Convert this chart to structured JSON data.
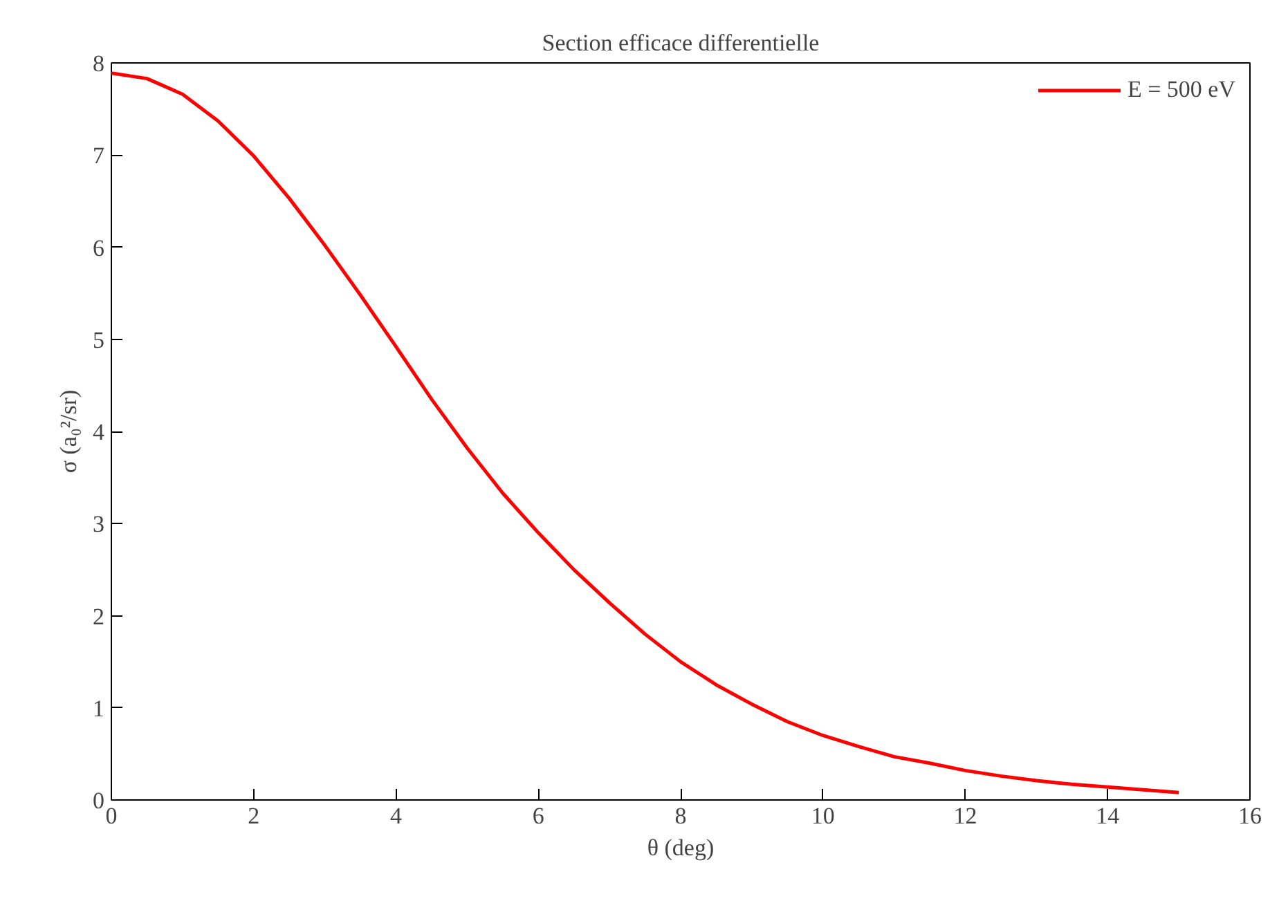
{
  "chart_data": {
    "type": "line",
    "title": "Section efficace differentielle",
    "xlabel": "θ (deg)",
    "ylabel": "σ (a₀²/sr)",
    "x": [
      0,
      0.5,
      1,
      1.5,
      2,
      2.5,
      3,
      3.5,
      4,
      4.5,
      5,
      5.5,
      6,
      6.5,
      7,
      7.5,
      8,
      8.5,
      9,
      9.5,
      10,
      10.5,
      11,
      11.5,
      12,
      12.5,
      13,
      13.5,
      14,
      14.5,
      15
    ],
    "series": [
      {
        "name": "E = 500 eV",
        "color": "#ff0000",
        "values": [
          7.89,
          7.83,
          7.66,
          7.37,
          6.99,
          6.53,
          6.02,
          5.48,
          4.92,
          4.35,
          3.82,
          3.33,
          2.9,
          2.5,
          2.14,
          1.8,
          1.5,
          1.25,
          1.04,
          0.85,
          0.7,
          0.58,
          0.47,
          0.4,
          0.32,
          0.26,
          0.21,
          0.17,
          0.14,
          0.11,
          0.08
        ]
      }
    ],
    "xlim": [
      0,
      16
    ],
    "ylim": [
      0,
      8
    ],
    "xticks": [
      0,
      2,
      4,
      6,
      8,
      10,
      12,
      14,
      16
    ],
    "yticks": [
      0,
      1,
      2,
      3,
      4,
      5,
      6,
      7,
      8
    ],
    "grid": false,
    "legend": "top right",
    "marker": "none",
    "line_style": "solid"
  }
}
